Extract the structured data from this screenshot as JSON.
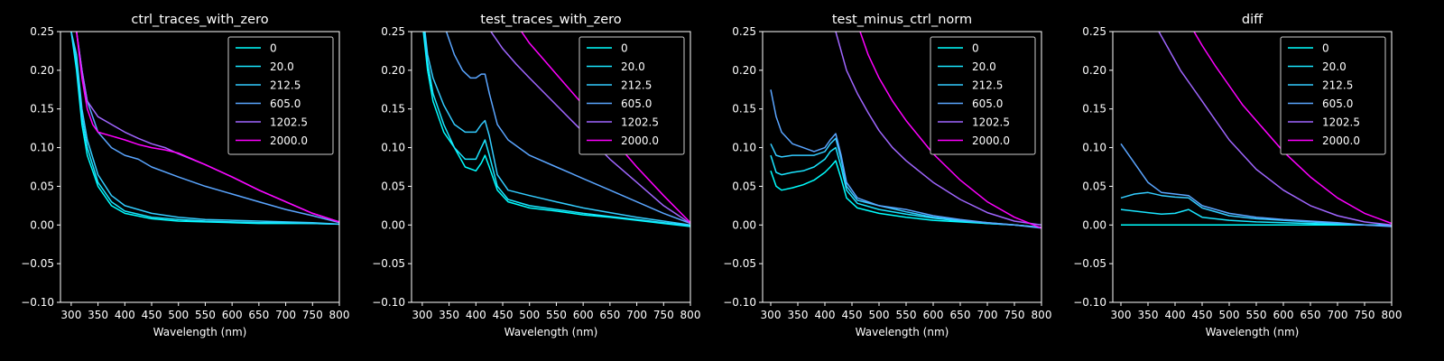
{
  "chart_data": [
    {
      "type": "line",
      "title": "ctrl_traces_with_zero",
      "xlabel": "Wavelength (nm)",
      "ylabel": "",
      "xlim": [
        280,
        800
      ],
      "ylim": [
        -0.1,
        0.25
      ],
      "xticks": [
        "300",
        "350",
        "400",
        "450",
        "500",
        "550",
        "600",
        "650",
        "700",
        "750",
        "800"
      ],
      "yticks": [
        "0.25",
        "0.20",
        "0.15",
        "0.10",
        "0.05",
        "0.00",
        "−0.05",
        "−0.10"
      ],
      "legend_position": "top-right",
      "series": [
        {
          "name": "0",
          "color": "#00ffff",
          "x": [
            300,
            310,
            320,
            330,
            350,
            375,
            400,
            450,
            500,
            550,
            600,
            650,
            700,
            750,
            800
          ],
          "y": [
            0.25,
            0.2,
            0.13,
            0.09,
            0.05,
            0.025,
            0.015,
            0.008,
            0.005,
            0.004,
            0.003,
            0.002,
            0.002,
            0.002,
            0.001
          ]
        },
        {
          "name": "20.0",
          "color": "#1ae5ff",
          "x": [
            300,
            310,
            320,
            330,
            350,
            375,
            400,
            450,
            500,
            550,
            600,
            650,
            700,
            750,
            800
          ],
          "y": [
            0.25,
            0.21,
            0.14,
            0.1,
            0.055,
            0.03,
            0.018,
            0.01,
            0.007,
            0.005,
            0.004,
            0.003,
            0.003,
            0.002,
            0.001
          ]
        },
        {
          "name": "212.5",
          "color": "#33ccff",
          "x": [
            300,
            310,
            320,
            330,
            350,
            375,
            400,
            450,
            500,
            550,
            600,
            650,
            700,
            750,
            800
          ],
          "y": [
            0.25,
            0.22,
            0.15,
            0.11,
            0.065,
            0.038,
            0.025,
            0.015,
            0.01,
            0.007,
            0.006,
            0.005,
            0.004,
            0.003,
            0.001
          ]
        },
        {
          "name": "605.0",
          "color": "#5aa5ff",
          "x": [
            310,
            320,
            330,
            350,
            375,
            400,
            425,
            450,
            500,
            550,
            600,
            650,
            700,
            750,
            800
          ],
          "y": [
            0.25,
            0.2,
            0.16,
            0.12,
            0.1,
            0.09,
            0.085,
            0.075,
            0.062,
            0.05,
            0.04,
            0.03,
            0.02,
            0.012,
            0.003
          ]
        },
        {
          "name": "1202.5",
          "color": "#a066ff",
          "x": [
            310,
            320,
            330,
            350,
            375,
            400,
            425,
            450,
            475,
            500,
            550,
            600,
            650,
            700,
            750,
            800
          ],
          "y": [
            0.25,
            0.2,
            0.16,
            0.14,
            0.13,
            0.12,
            0.112,
            0.105,
            0.1,
            0.092,
            0.078,
            0.062,
            0.045,
            0.03,
            0.015,
            0.004
          ]
        },
        {
          "name": "2000.0",
          "color": "#ff00ff",
          "x": [
            310,
            320,
            330,
            340,
            350,
            375,
            400,
            425,
            450,
            475,
            500,
            550,
            600,
            650,
            700,
            750,
            800
          ],
          "y": [
            0.25,
            0.19,
            0.15,
            0.13,
            0.12,
            0.115,
            0.11,
            0.104,
            0.1,
            0.097,
            0.093,
            0.078,
            0.062,
            0.045,
            0.03,
            0.015,
            0.004
          ]
        }
      ]
    },
    {
      "type": "line",
      "title": "test_traces_with_zero",
      "xlabel": "Wavelength (nm)",
      "ylabel": "",
      "xlim": [
        280,
        800
      ],
      "ylim": [
        -0.1,
        0.25
      ],
      "xticks": [
        "300",
        "350",
        "400",
        "450",
        "500",
        "550",
        "600",
        "650",
        "700",
        "750",
        "800"
      ],
      "yticks": [
        "0.25",
        "0.20",
        "0.15",
        "0.10",
        "0.05",
        "0.00",
        "−0.05",
        "−0.10"
      ],
      "legend_position": "top-right",
      "series": [
        {
          "name": "0",
          "color": "#00ffff",
          "x": [
            302,
            310,
            320,
            340,
            360,
            380,
            400,
            410,
            417,
            425,
            440,
            460,
            500,
            550,
            600,
            650,
            700,
            750,
            800
          ],
          "y": [
            0.25,
            0.2,
            0.16,
            0.12,
            0.1,
            0.075,
            0.07,
            0.08,
            0.09,
            0.075,
            0.045,
            0.03,
            0.022,
            0.018,
            0.013,
            0.01,
            0.006,
            0.002,
            -0.002
          ]
        },
        {
          "name": "20.0",
          "color": "#1ae5ff",
          "x": [
            303,
            310,
            320,
            340,
            360,
            380,
            400,
            410,
            417,
            425,
            440,
            460,
            500,
            550,
            600,
            650,
            700,
            750,
            800
          ],
          "y": [
            0.25,
            0.21,
            0.17,
            0.13,
            0.1,
            0.085,
            0.085,
            0.1,
            0.11,
            0.09,
            0.05,
            0.033,
            0.025,
            0.02,
            0.015,
            0.011,
            0.007,
            0.003,
            -0.001
          ]
        },
        {
          "name": "212.5",
          "color": "#33ccff",
          "x": [
            305,
            310,
            320,
            340,
            360,
            380,
            400,
            410,
            417,
            425,
            440,
            460,
            500,
            550,
            600,
            650,
            700,
            750,
            800
          ],
          "y": [
            0.25,
            0.22,
            0.19,
            0.155,
            0.13,
            0.12,
            0.12,
            0.13,
            0.135,
            0.115,
            0.065,
            0.045,
            0.038,
            0.03,
            0.022,
            0.016,
            0.01,
            0.005,
            0.0
          ]
        },
        {
          "name": "605.0",
          "color": "#5aa5ff",
          "x": [
            345,
            360,
            375,
            390,
            400,
            410,
            417,
            425,
            440,
            460,
            500,
            550,
            600,
            650,
            700,
            750,
            800
          ],
          "y": [
            0.25,
            0.22,
            0.2,
            0.19,
            0.19,
            0.195,
            0.195,
            0.17,
            0.13,
            0.11,
            0.09,
            0.075,
            0.06,
            0.045,
            0.03,
            0.015,
            0.002
          ]
        },
        {
          "name": "1202.5",
          "color": "#a066ff",
          "x": [
            428,
            450,
            475,
            500,
            550,
            600,
            650,
            700,
            750,
            800
          ],
          "y": [
            0.25,
            0.228,
            0.208,
            0.19,
            0.155,
            0.12,
            0.085,
            0.055,
            0.025,
            0.002
          ]
        },
        {
          "name": "2000.0",
          "color": "#ff00ff",
          "x": [
            485,
            500,
            525,
            550,
            600,
            650,
            700,
            750,
            800
          ],
          "y": [
            0.25,
            0.235,
            0.215,
            0.195,
            0.155,
            0.115,
            0.075,
            0.038,
            0.003
          ]
        }
      ]
    },
    {
      "type": "line",
      "title": "test_minus_ctrl_norm",
      "xlabel": "Wavelength (nm)",
      "ylabel": "",
      "xlim": [
        285,
        800
      ],
      "ylim": [
        -0.1,
        0.25
      ],
      "xticks": [
        "300",
        "350",
        "400",
        "450",
        "500",
        "550",
        "600",
        "650",
        "700",
        "750",
        "800"
      ],
      "yticks": [
        "0.25",
        "0.20",
        "0.15",
        "0.10",
        "0.05",
        "0.00",
        "−0.05",
        "−0.10"
      ],
      "legend_position": "top-right",
      "series": [
        {
          "name": "0",
          "color": "#00ffff",
          "x": [
            300,
            310,
            320,
            340,
            360,
            380,
            400,
            410,
            420,
            430,
            440,
            460,
            500,
            550,
            600,
            650,
            700,
            750,
            800
          ],
          "y": [
            0.07,
            0.05,
            0.045,
            0.048,
            0.052,
            0.058,
            0.068,
            0.075,
            0.083,
            0.06,
            0.035,
            0.022,
            0.015,
            0.01,
            0.006,
            0.004,
            0.002,
            0.0,
            -0.003
          ]
        },
        {
          "name": "20.0",
          "color": "#1ae5ff",
          "x": [
            300,
            310,
            320,
            340,
            360,
            380,
            400,
            410,
            420,
            430,
            440,
            460,
            500,
            550,
            600,
            650,
            700,
            750,
            800
          ],
          "y": [
            0.09,
            0.068,
            0.065,
            0.068,
            0.07,
            0.075,
            0.085,
            0.095,
            0.1,
            0.075,
            0.045,
            0.028,
            0.02,
            0.014,
            0.009,
            0.005,
            0.002,
            0.0,
            -0.003
          ]
        },
        {
          "name": "212.5",
          "color": "#33ccff",
          "x": [
            300,
            310,
            320,
            340,
            360,
            380,
            400,
            410,
            420,
            430,
            440,
            460,
            500,
            550,
            600,
            650,
            700,
            750,
            800
          ],
          "y": [
            0.105,
            0.09,
            0.088,
            0.09,
            0.09,
            0.09,
            0.095,
            0.105,
            0.112,
            0.085,
            0.05,
            0.032,
            0.025,
            0.017,
            0.01,
            0.006,
            0.003,
            0.0,
            -0.003
          ]
        },
        {
          "name": "605.0",
          "color": "#5aa5ff",
          "x": [
            300,
            310,
            320,
            340,
            360,
            380,
            400,
            410,
            420,
            430,
            440,
            460,
            500,
            550,
            600,
            650,
            700,
            750,
            800
          ],
          "y": [
            0.175,
            0.14,
            0.12,
            0.105,
            0.1,
            0.095,
            0.1,
            0.11,
            0.118,
            0.09,
            0.055,
            0.035,
            0.025,
            0.02,
            0.012,
            0.007,
            0.003,
            0.0,
            -0.004
          ]
        },
        {
          "name": "1202.5",
          "color": "#a066ff",
          "x": [
            420,
            440,
            460,
            480,
            500,
            525,
            550,
            600,
            650,
            700,
            750,
            800
          ],
          "y": [
            0.25,
            0.2,
            0.17,
            0.145,
            0.122,
            0.1,
            0.083,
            0.055,
            0.033,
            0.016,
            0.005,
            0.0
          ]
        },
        {
          "name": "2000.0",
          "color": "#ff00ff",
          "x": [
            465,
            480,
            500,
            525,
            550,
            600,
            650,
            700,
            750,
            800
          ],
          "y": [
            0.25,
            0.22,
            0.19,
            0.16,
            0.135,
            0.092,
            0.058,
            0.03,
            0.01,
            -0.004
          ]
        }
      ]
    },
    {
      "type": "line",
      "title": "diff",
      "xlabel": "Wavelength (nm)",
      "ylabel": "",
      "xlim": [
        285,
        800
      ],
      "ylim": [
        -0.1,
        0.25
      ],
      "xticks": [
        "300",
        "350",
        "400",
        "450",
        "500",
        "550",
        "600",
        "650",
        "700",
        "750",
        "800"
      ],
      "yticks": [
        "0.25",
        "0.20",
        "0.15",
        "0.10",
        "0.05",
        "0.00",
        "−0.05",
        "−0.10"
      ],
      "legend_position": "top-right",
      "series": [
        {
          "name": "0",
          "color": "#00ffff",
          "x": [
            300,
            800
          ],
          "y": [
            0.0,
            0.0
          ]
        },
        {
          "name": "20.0",
          "color": "#1ae5ff",
          "x": [
            300,
            325,
            350,
            375,
            400,
            425,
            450,
            500,
            550,
            600,
            650,
            700,
            750,
            800
          ],
          "y": [
            0.02,
            0.018,
            0.016,
            0.014,
            0.015,
            0.02,
            0.01,
            0.006,
            0.004,
            0.003,
            0.002,
            0.001,
            0.0,
            -0.001
          ]
        },
        {
          "name": "212.5",
          "color": "#33ccff",
          "x": [
            300,
            325,
            350,
            375,
            400,
            425,
            450,
            500,
            550,
            600,
            650,
            700,
            750,
            800
          ],
          "y": [
            0.035,
            0.04,
            0.042,
            0.038,
            0.036,
            0.035,
            0.022,
            0.012,
            0.008,
            0.006,
            0.004,
            0.002,
            0.0,
            -0.001
          ]
        },
        {
          "name": "605.0",
          "color": "#5aa5ff",
          "x": [
            300,
            325,
            350,
            375,
            400,
            425,
            450,
            500,
            550,
            600,
            650,
            700,
            750,
            800
          ],
          "y": [
            0.105,
            0.08,
            0.055,
            0.042,
            0.04,
            0.038,
            0.025,
            0.015,
            0.01,
            0.007,
            0.005,
            0.003,
            0.0,
            -0.002
          ]
        },
        {
          "name": "1202.5",
          "color": "#a066ff",
          "x": [
            370,
            390,
            410,
            430,
            450,
            475,
            500,
            550,
            600,
            650,
            700,
            750,
            800
          ],
          "y": [
            0.25,
            0.225,
            0.2,
            0.18,
            0.16,
            0.135,
            0.11,
            0.072,
            0.045,
            0.025,
            0.012,
            0.004,
            0.0
          ]
        },
        {
          "name": "2000.0",
          "color": "#ff00ff",
          "x": [
            435,
            450,
            475,
            500,
            525,
            550,
            600,
            650,
            700,
            750,
            800
          ],
          "y": [
            0.25,
            0.232,
            0.205,
            0.18,
            0.155,
            0.135,
            0.095,
            0.062,
            0.035,
            0.015,
            0.002
          ]
        }
      ]
    }
  ]
}
